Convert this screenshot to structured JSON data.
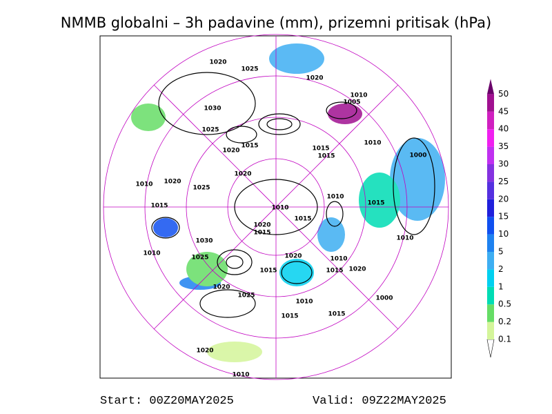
{
  "header": {
    "title": "NMMB globalni – 3h padavine (mm), prizemni pritisak (hPa)"
  },
  "colorbar": {
    "labels": [
      "0.1",
      "0.2",
      "0.5",
      "1",
      "2",
      "5",
      "10",
      "15",
      "20",
      "25",
      "30",
      "35",
      "40",
      "45",
      "50"
    ],
    "colors": [
      "#d4f59a",
      "#66dd66",
      "#00dcb4",
      "#00d0f0",
      "#3eaef2",
      "#1e82f0",
      "#1050f0",
      "#2020dc",
      "#5530e0",
      "#8432e0",
      "#c030f0",
      "#f020f0",
      "#d020c0",
      "#a01090",
      "#6a006a"
    ]
  },
  "map": {
    "isobar_labels": [
      "1020",
      "1025",
      "1020",
      "1010",
      "1005",
      "1030",
      "1025",
      "1015",
      "1020",
      "1015",
      "1015",
      "1010",
      "1000",
      "1020",
      "1010",
      "1020",
      "1025",
      "1010",
      "1015",
      "1010",
      "1015",
      "1020",
      "1015",
      "1010",
      "1015",
      "1030",
      "1020",
      "1010",
      "1025",
      "1010",
      "1015",
      "1020",
      "1015",
      "1025",
      "1020",
      "1010",
      "1000",
      "1015",
      "1015",
      "1020",
      "1010"
    ]
  },
  "footer": {
    "start": "Start: 00Z20MAY2025",
    "valid": "Valid: 09Z22MAY2025"
  }
}
